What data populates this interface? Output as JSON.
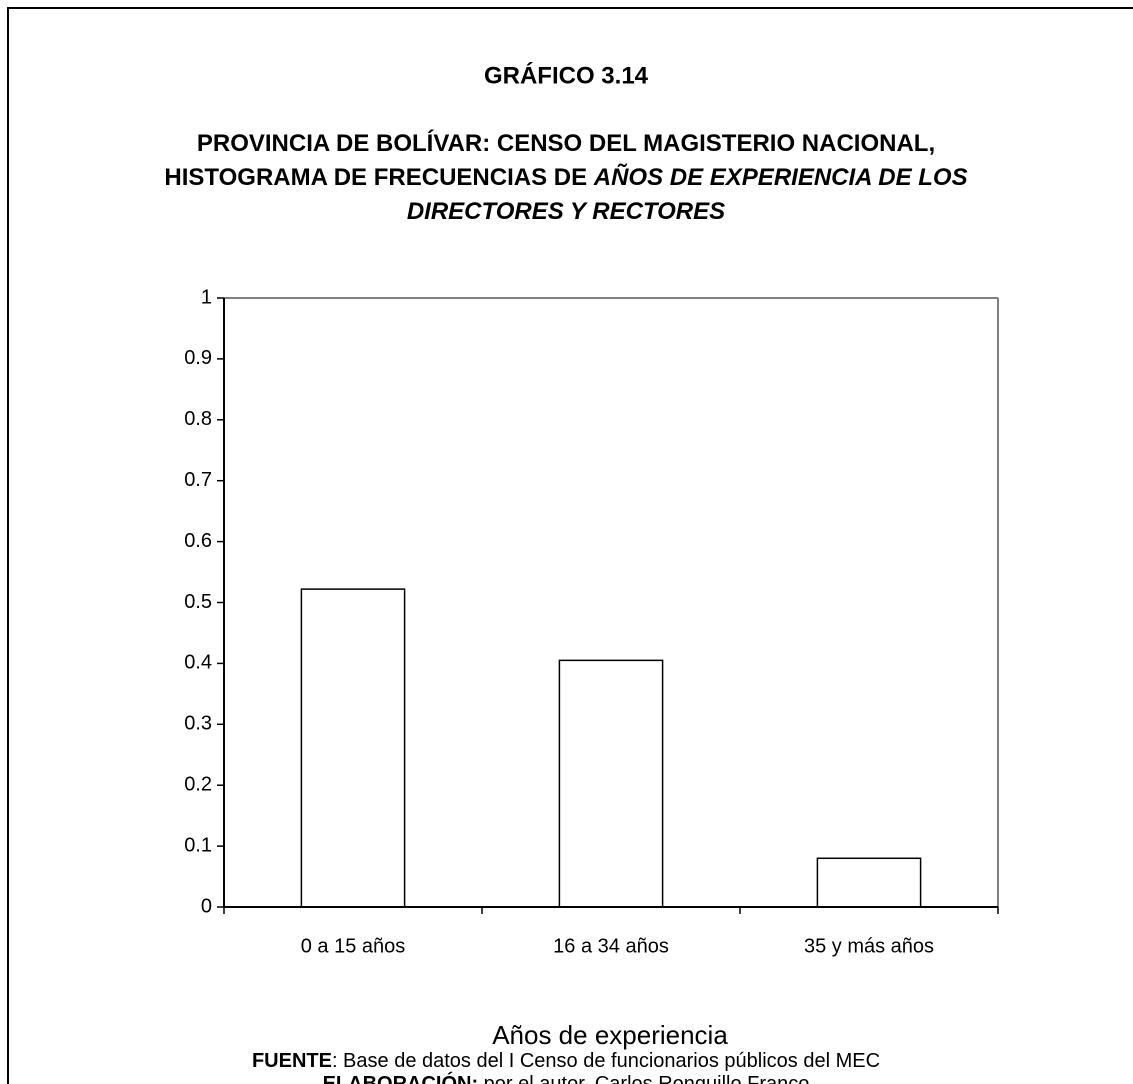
{
  "chart_data": {
    "type": "bar",
    "title": "GRÁFICO 3.14",
    "subtitle": [
      [
        {
          "text": "PROVINCIA DE BOLÍVAR: CENSO DEL MAGISTERIO NACIONAL,",
          "italic": false
        }
      ],
      [
        {
          "text": "HISTOGRAMA DE FRECUENCIAS DE ",
          "italic": false
        },
        {
          "text": "AÑOS DE EXPERIENCIA DE LOS",
          "italic": true
        }
      ],
      [
        {
          "text": "DIRECTORES Y RECTORES",
          "italic": true
        }
      ]
    ],
    "categories": [
      "0 a 15 años",
      "16 a 34 años",
      "35 y más años"
    ],
    "values": [
      0.522,
      0.405,
      0.08
    ],
    "color": "#ffffff",
    "ylim": [
      0,
      1
    ],
    "yticks": [
      0,
      0.1,
      0.2,
      0.3,
      0.4,
      0.5,
      0.6,
      0.7,
      0.8,
      0.9,
      1
    ],
    "xlabel": "Años de experiencia",
    "notes": [
      [
        {
          "text": "FUENTE",
          "bold": true
        },
        {
          "text": ": Base de datos del I Censo de funcionarios públicos del MEC",
          "bold": false
        }
      ],
      [
        {
          "text": "ELABORACIÓN:",
          "bold": true
        },
        {
          "text": " por el autor, Carlos Ronquillo Franco",
          "bold": false
        }
      ]
    ]
  }
}
